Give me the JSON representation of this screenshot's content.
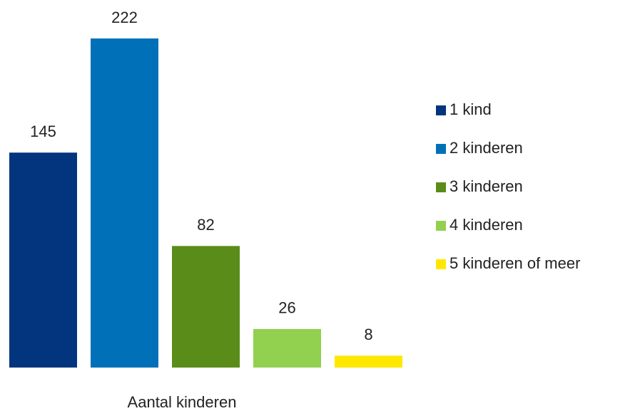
{
  "chart_data": {
    "type": "bar",
    "x_label": "Aantal kinderen",
    "categories": [
      null
    ],
    "series": [
      {
        "name": "1 kind",
        "color": "#02357e",
        "values": [
          145
        ]
      },
      {
        "name": "2 kinderen",
        "color": "#0070b8",
        "values": [
          222
        ]
      },
      {
        "name": "3 kinderen",
        "color": "#5a8c1a",
        "values": [
          82
        ]
      },
      {
        "name": "4 kinderen",
        "color": "#92d050",
        "values": [
          26
        ]
      },
      {
        "name": "5 kinderen of meer",
        "color": "#ffe800",
        "values": [
          8
        ]
      }
    ],
    "legend": "right"
  }
}
